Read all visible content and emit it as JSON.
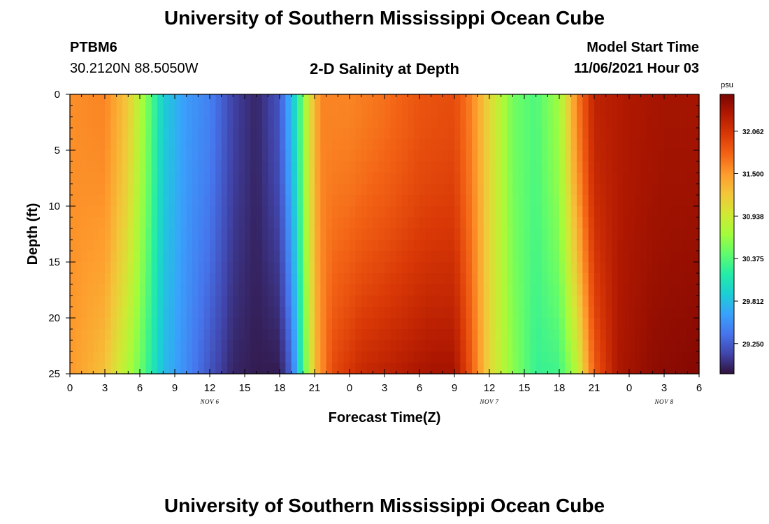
{
  "header": {
    "title": "University of Southern Mississippi Ocean Cube",
    "station": "PTBM6",
    "coords": "30.2120N  88.5050W",
    "plot_title": "2-D Salinity at Depth",
    "start_label": "Model Start Time",
    "start_value": "11/06/2021 Hour 03"
  },
  "footer": {
    "title": "University of Southern Mississippi Ocean Cube"
  },
  "colors": {
    "ramp": [
      "#30123b",
      "#4145ab",
      "#4675ed",
      "#39a2fc",
      "#1bcfd4",
      "#24eca6",
      "#61fc6c",
      "#a4fc3b",
      "#d1e834",
      "#f3c63a",
      "#fe9b2d",
      "#f36315",
      "#d93806",
      "#b11901",
      "#7a0402"
    ]
  },
  "chart_data": {
    "type": "heatmap",
    "title": "2-D Salinity at Depth",
    "xlabel": "Forecast Time(Z)",
    "ylabel": "Depth (ft)",
    "x_tick_labels": [
      "0",
      "3",
      "6",
      "9",
      "12",
      "15",
      "18",
      "21",
      "0",
      "3",
      "6",
      "9",
      "12",
      "15",
      "18",
      "21",
      "0",
      "3",
      "6"
    ],
    "x_range_hours": [
      0,
      54
    ],
    "day_labels": [
      {
        "text": "NOV 6",
        "hour": 12
      },
      {
        "text": "NOV 7",
        "hour": 36
      },
      {
        "text": "NOV 8",
        "hour": 51
      }
    ],
    "y_ticks": [
      0,
      5,
      10,
      15,
      20,
      25
    ],
    "ylim": [
      0,
      25
    ],
    "y_inverted": true,
    "colorbar": {
      "unit": "psu",
      "range": [
        28.85,
        32.55
      ],
      "labels": [
        "32.062",
        "31.500",
        "30.938",
        "30.375",
        "29.812",
        "29.250"
      ]
    },
    "salinity_profile_surface": [
      {
        "h": 0,
        "psu": 31.55
      },
      {
        "h": 3,
        "psu": 31.6
      },
      {
        "h": 5,
        "psu": 31.2
      },
      {
        "h": 6.5,
        "psu": 30.6
      },
      {
        "h": 8,
        "psu": 29.9
      },
      {
        "h": 10,
        "psu": 29.6
      },
      {
        "h": 12,
        "psu": 29.45
      },
      {
        "h": 14,
        "psu": 29.1
      },
      {
        "h": 16,
        "psu": 28.95
      },
      {
        "h": 18,
        "psu": 29.2
      },
      {
        "h": 19.5,
        "psu": 30.1
      },
      {
        "h": 20.5,
        "psu": 31.0
      },
      {
        "h": 21.5,
        "psu": 31.6
      },
      {
        "h": 24,
        "psu": 31.6
      },
      {
        "h": 27,
        "psu": 31.7
      },
      {
        "h": 30,
        "psu": 31.85
      },
      {
        "h": 33,
        "psu": 31.9
      },
      {
        "h": 34.5,
        "psu": 31.6
      },
      {
        "h": 36,
        "psu": 31.1
      },
      {
        "h": 38,
        "psu": 30.5
      },
      {
        "h": 40,
        "psu": 30.35
      },
      {
        "h": 42,
        "psu": 30.7
      },
      {
        "h": 43.5,
        "psu": 31.6
      },
      {
        "h": 45,
        "psu": 32.2
      },
      {
        "h": 48,
        "psu": 32.3
      },
      {
        "h": 51,
        "psu": 32.35
      },
      {
        "h": 54,
        "psu": 32.35
      }
    ],
    "salinity_profile_bottom": [
      {
        "h": 0,
        "psu": 31.5
      },
      {
        "h": 3,
        "psu": 31.25
      },
      {
        "h": 6,
        "psu": 30.5
      },
      {
        "h": 8,
        "psu": 29.8
      },
      {
        "h": 10,
        "psu": 29.5
      },
      {
        "h": 12,
        "psu": 29.2
      },
      {
        "h": 14,
        "psu": 28.95
      },
      {
        "h": 16,
        "psu": 28.9
      },
      {
        "h": 18,
        "psu": 28.9
      },
      {
        "h": 19,
        "psu": 29.3
      },
      {
        "h": 20,
        "psu": 30.3
      },
      {
        "h": 21,
        "psu": 31.3
      },
      {
        "h": 22.5,
        "psu": 31.9
      },
      {
        "h": 25,
        "psu": 32.15
      },
      {
        "h": 28,
        "psu": 32.25
      },
      {
        "h": 31,
        "psu": 32.35
      },
      {
        "h": 33,
        "psu": 32.35
      },
      {
        "h": 34.5,
        "psu": 31.8
      },
      {
        "h": 36,
        "psu": 31.1
      },
      {
        "h": 38,
        "psu": 30.6
      },
      {
        "h": 40,
        "psu": 30.25
      },
      {
        "h": 42,
        "psu": 30.3
      },
      {
        "h": 43.5,
        "psu": 30.8
      },
      {
        "h": 45,
        "psu": 31.8
      },
      {
        "h": 47,
        "psu": 32.3
      },
      {
        "h": 50,
        "psu": 32.45
      },
      {
        "h": 54,
        "psu": 32.5
      }
    ]
  }
}
